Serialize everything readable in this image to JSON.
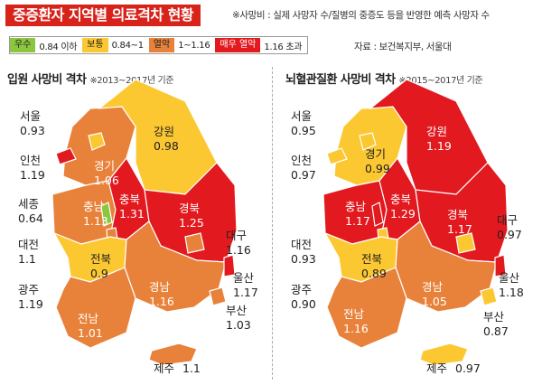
{
  "title": "중증환자 지역별 의료격차 현황",
  "subtitle": "※사망비 : 실제 사망자 수/질병의 중증도 등을 반영한 예측 사망자 수",
  "source": "자료 : 보건복지부, 서울대",
  "legend": [
    {
      "name": "우수",
      "range": "0.84 이하",
      "color": "#8cc63f"
    },
    {
      "name": "보통",
      "range": "0.84~1",
      "color": "#fcc832"
    },
    {
      "name": "열악",
      "range": "1~1.16",
      "color": "#e8823a"
    },
    {
      "name": "매우 열악",
      "range": "1.16 초과",
      "color": "#e2191e"
    }
  ],
  "colors": {
    "good": "#8cc63f",
    "normal": "#fcc832",
    "poor": "#e8823a",
    "verypoor": "#e2191e"
  },
  "panels": [
    {
      "title": "입원 사망비 격차",
      "note": "※2013~2017년 기준",
      "regions": [
        {
          "name": "서울",
          "value": "0.93",
          "level": "normal"
        },
        {
          "name": "인천",
          "value": "1.19",
          "level": "verypoor"
        },
        {
          "name": "경기",
          "value": "1.06",
          "level": "poor"
        },
        {
          "name": "강원",
          "value": "0.98",
          "level": "normal"
        },
        {
          "name": "세종",
          "value": "0.64",
          "level": "good"
        },
        {
          "name": "충남",
          "value": "1.13",
          "level": "poor"
        },
        {
          "name": "충북",
          "value": "1.31",
          "level": "verypoor"
        },
        {
          "name": "경북",
          "value": "1.25",
          "level": "verypoor"
        },
        {
          "name": "대전",
          "value": "1.1",
          "level": "poor"
        },
        {
          "name": "전북",
          "value": "0.9",
          "level": "normal"
        },
        {
          "name": "대구",
          "value": "1.16",
          "level": "poor"
        },
        {
          "name": "광주",
          "value": "1.19",
          "level": "verypoor"
        },
        {
          "name": "경남",
          "value": "1.16",
          "level": "poor"
        },
        {
          "name": "울산",
          "value": "1.17",
          "level": "verypoor"
        },
        {
          "name": "부산",
          "value": "1.03",
          "level": "poor"
        },
        {
          "name": "전남",
          "value": "1.01",
          "level": "poor"
        },
        {
          "name": "제주",
          "value": "1.1",
          "level": "poor"
        }
      ]
    },
    {
      "title": "뇌혈관질환 사망비 격차",
      "note": "※2015~2017년 기준",
      "regions": [
        {
          "name": "서울",
          "value": "0.95",
          "level": "normal"
        },
        {
          "name": "인천",
          "value": "0.97",
          "level": "normal"
        },
        {
          "name": "경기",
          "value": "0.99",
          "level": "normal"
        },
        {
          "name": "강원",
          "value": "1.19",
          "level": "verypoor"
        },
        {
          "name": "충남",
          "value": "1.17",
          "level": "verypoor"
        },
        {
          "name": "충북",
          "value": "1.29",
          "level": "verypoor"
        },
        {
          "name": "경북",
          "value": "1.17",
          "level": "verypoor"
        },
        {
          "name": "대전",
          "value": "0.93",
          "level": "normal"
        },
        {
          "name": "대구",
          "value": "0.97",
          "level": "normal"
        },
        {
          "name": "전북",
          "value": "0.89",
          "level": "normal"
        },
        {
          "name": "광주",
          "value": "0.90",
          "level": "normal"
        },
        {
          "name": "경남",
          "value": "1.05",
          "level": "poor"
        },
        {
          "name": "울산",
          "value": "1.18",
          "level": "verypoor"
        },
        {
          "name": "부산",
          "value": "0.87",
          "level": "normal"
        },
        {
          "name": "전남",
          "value": "1.16",
          "level": "poor"
        },
        {
          "name": "제주",
          "value": "0.97",
          "level": "normal"
        }
      ]
    }
  ]
}
